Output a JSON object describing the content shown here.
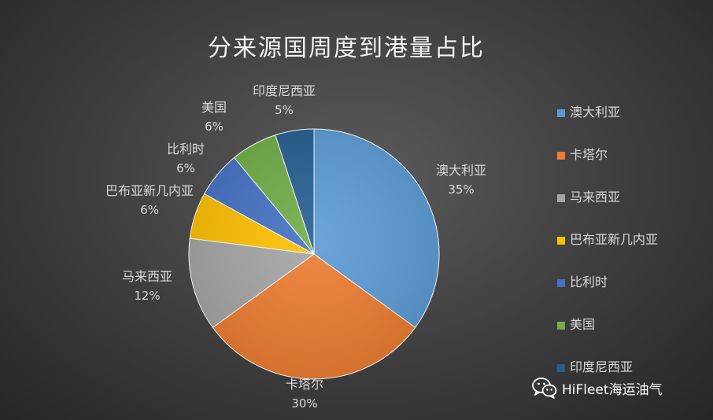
{
  "chart_data": {
    "type": "pie",
    "title": "分来源国周度到港量占比",
    "slices": [
      {
        "label": "澳大利亚",
        "value": 35,
        "value_text": "35%",
        "color": "#5b9bd5"
      },
      {
        "label": "卡塔尔",
        "value": 30,
        "value_text": "30%",
        "color": "#ed7d31"
      },
      {
        "label": "马来西亚",
        "value": 12,
        "value_text": "12%",
        "color": "#a5a5a5"
      },
      {
        "label": "巴布亚新几内亚",
        "value": 6,
        "value_text": "6%",
        "color": "#ffc000"
      },
      {
        "label": "比利时",
        "value": 6,
        "value_text": "6%",
        "color": "#4472c4"
      },
      {
        "label": "美国",
        "value": 6,
        "value_text": "6%",
        "color": "#70ad47"
      },
      {
        "label": "印度尼西亚",
        "value": 5,
        "value_text": "5%",
        "color": "#255e91"
      }
    ],
    "legend_position": "right"
  },
  "watermark": {
    "text": "HiFleet海运油气",
    "icon": "wechat-icon"
  }
}
